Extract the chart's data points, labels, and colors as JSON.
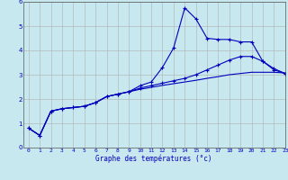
{
  "xlabel": "Graphe des températures (°c)",
  "background_color": "#c8e8f0",
  "grid_color": "#b0b0b0",
  "line_color": "#0000bb",
  "xlim": [
    -0.5,
    23
  ],
  "ylim": [
    0,
    6
  ],
  "xticks": [
    0,
    1,
    2,
    3,
    4,
    5,
    6,
    7,
    8,
    9,
    10,
    11,
    12,
    13,
    14,
    15,
    16,
    17,
    18,
    19,
    20,
    21,
    22,
    23
  ],
  "yticks": [
    0,
    1,
    2,
    3,
    4,
    5,
    6
  ],
  "series": {
    "line1_x": [
      0,
      1,
      2,
      3,
      4,
      5,
      6,
      7,
      8,
      9,
      10,
      11,
      12,
      13,
      14,
      15,
      16,
      17,
      18,
      19,
      20,
      21,
      22,
      23
    ],
    "line1_y": [
      0.8,
      0.5,
      1.5,
      1.6,
      1.65,
      1.7,
      1.85,
      2.1,
      2.2,
      2.3,
      2.55,
      2.7,
      3.3,
      4.1,
      5.75,
      5.3,
      4.5,
      4.45,
      4.45,
      4.35,
      4.35,
      3.55,
      3.2,
      3.05
    ],
    "line2_x": [
      0,
      1,
      2,
      3,
      4,
      5,
      6,
      7,
      8,
      9,
      10,
      11,
      12,
      13,
      14,
      15,
      16,
      17,
      18,
      19,
      20,
      21,
      22,
      23
    ],
    "line2_y": [
      0.8,
      0.5,
      1.5,
      1.6,
      1.65,
      1.7,
      1.85,
      2.1,
      2.2,
      2.3,
      2.45,
      2.55,
      2.65,
      2.75,
      2.85,
      3.0,
      3.2,
      3.4,
      3.6,
      3.75,
      3.75,
      3.55,
      3.25,
      3.05
    ],
    "line3_x": [
      0,
      1,
      2,
      3,
      4,
      5,
      6,
      7,
      8,
      9,
      10,
      11,
      12,
      13,
      14,
      15,
      16,
      17,
      18,
      19,
      20,
      21,
      22,
      23
    ],
    "line3_y": [
      0.8,
      0.5,
      1.5,
      1.6,
      1.65,
      1.7,
      1.85,
      2.1,
      2.2,
      2.3,
      2.4,
      2.48,
      2.56,
      2.63,
      2.7,
      2.77,
      2.85,
      2.92,
      3.0,
      3.05,
      3.1,
      3.1,
      3.1,
      3.07
    ]
  }
}
